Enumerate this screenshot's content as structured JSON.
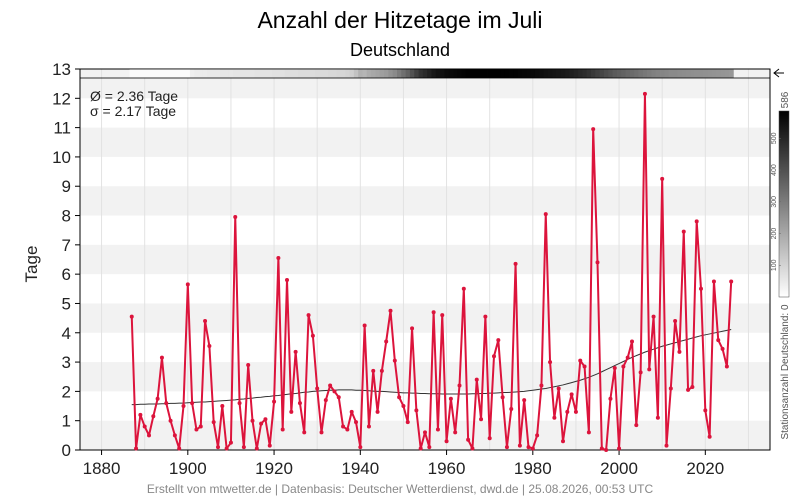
{
  "header": {
    "title": "Anzahl der Hitzetage im Juli",
    "subtitle": "Deutschland"
  },
  "stats": {
    "mean": "Ø = 2.36 Tage",
    "sigma": "σ = 2.17 Tage"
  },
  "credit": "Erstellt von mtwetter.de | Datenbasis: Deutscher Wetterdienst, dwd.de | 25.08.2026, 00:53 UTC",
  "colorbar": {
    "label": "Stationsanzahl Deutschland: 0",
    "max_label": "586",
    "ticks": [
      "100",
      "200",
      "300",
      "400",
      "500"
    ],
    "range": [
      0,
      586
    ]
  },
  "colors": {
    "series": "#dc143c",
    "trend": "#333333",
    "band": "#f2f2f2"
  },
  "chart_data": {
    "type": "line",
    "title": "Anzahl der Hitzetage im Juli",
    "subtitle": "Deutschland",
    "xlabel": "",
    "ylabel": "Tage",
    "xlim": [
      1875,
      2035
    ],
    "ylim": [
      0,
      13
    ],
    "xticks": [
      1880,
      1900,
      1920,
      1940,
      1960,
      1980,
      2000,
      2020
    ],
    "yticks": [
      0,
      1,
      2,
      3,
      4,
      5,
      6,
      7,
      8,
      9,
      10,
      11,
      12,
      13
    ],
    "grid": true,
    "x": [
      1887,
      1888,
      1889,
      1890,
      1891,
      1892,
      1893,
      1894,
      1895,
      1896,
      1897,
      1898,
      1899,
      1900,
      1901,
      1902,
      1903,
      1904,
      1905,
      1906,
      1907,
      1908,
      1909,
      1910,
      1911,
      1912,
      1913,
      1914,
      1915,
      1916,
      1917,
      1918,
      1919,
      1920,
      1921,
      1922,
      1923,
      1924,
      1925,
      1926,
      1927,
      1928,
      1929,
      1930,
      1931,
      1932,
      1933,
      1934,
      1935,
      1936,
      1937,
      1938,
      1939,
      1940,
      1941,
      1942,
      1943,
      1944,
      1945,
      1946,
      1947,
      1948,
      1949,
      1950,
      1951,
      1952,
      1953,
      1954,
      1955,
      1956,
      1957,
      1958,
      1959,
      1960,
      1961,
      1962,
      1963,
      1964,
      1965,
      1966,
      1967,
      1968,
      1969,
      1970,
      1971,
      1972,
      1973,
      1974,
      1975,
      1976,
      1977,
      1978,
      1979,
      1980,
      1981,
      1982,
      1983,
      1984,
      1985,
      1986,
      1987,
      1988,
      1989,
      1990,
      1991,
      1992,
      1993,
      1994,
      1995,
      1996,
      1997,
      1998,
      1999,
      2000,
      2001,
      2002,
      2003,
      2004,
      2005,
      2006,
      2007,
      2008,
      2009,
      2010,
      2011,
      2012,
      2013,
      2014,
      2015,
      2016,
      2017,
      2018,
      2019,
      2020,
      2021,
      2022,
      2023,
      2024,
      2025,
      2026
    ],
    "series": [
      {
        "values": [
          4.55,
          0.05,
          1.2,
          0.8,
          0.5,
          1.15,
          1.75,
          3.15,
          1.6,
          1.0,
          0.5,
          0.05,
          1.5,
          5.65,
          1.6,
          0.7,
          0.8,
          4.4,
          3.55,
          0.95,
          0.1,
          1.5,
          0.05,
          0.25,
          7.95,
          1.6,
          0.1,
          2.9,
          1.0,
          0.05,
          0.9,
          1.05,
          0.15,
          1.65,
          6.55,
          0.7,
          5.8,
          1.3,
          3.35,
          1.6,
          0.6,
          4.6,
          3.9,
          2.1,
          0.6,
          1.7,
          2.2,
          2.0,
          1.8,
          0.8,
          0.7,
          1.3,
          0.95,
          0.1,
          4.25,
          0.8,
          2.7,
          1.3,
          2.7,
          3.7,
          4.75,
          3.05,
          1.8,
          1.5,
          0.95,
          4.15,
          1.35,
          0.05,
          0.6,
          0.1,
          4.7,
          0.7,
          4.6,
          0.3,
          1.75,
          0.6,
          2.2,
          5.5,
          0.35,
          0.05,
          2.4,
          1.05,
          4.55,
          0.4,
          3.2,
          3.75,
          1.8,
          0.1,
          1.4,
          6.35,
          0.15,
          1.7,
          0.1,
          0.05,
          0.5,
          2.2,
          8.05,
          3.0,
          1.1,
          2.1,
          0.3,
          1.3,
          1.9,
          1.3,
          3.05,
          2.85,
          0.6,
          10.95,
          6.4,
          0.05,
          0.0,
          1.75,
          2.8,
          0.05,
          2.85,
          3.15,
          3.7,
          0.85,
          2.65,
          12.15,
          2.75,
          4.55,
          1.1,
          9.25,
          0.15,
          2.1,
          4.4,
          3.35,
          7.45,
          2.05,
          2.15,
          7.8,
          5.5,
          1.35,
          0.45,
          5.75,
          3.75,
          3.45,
          2.85,
          5.75
        ]
      },
      {
        "kind": "trend",
        "values": [
          1.55,
          1.55,
          1.56,
          1.56,
          1.57,
          1.57,
          1.57,
          1.58,
          1.58,
          1.59,
          1.59,
          1.6,
          1.6,
          1.61,
          1.62,
          1.63,
          1.64,
          1.64,
          1.65,
          1.66,
          1.67,
          1.68,
          1.69,
          1.7,
          1.71,
          1.73,
          1.74,
          1.76,
          1.77,
          1.79,
          1.8,
          1.82,
          1.83,
          1.85,
          1.86,
          1.88,
          1.9,
          1.92,
          1.93,
          1.95,
          1.97,
          1.98,
          2.0,
          2.01,
          2.02,
          2.03,
          2.04,
          2.04,
          2.05,
          2.05,
          2.05,
          2.05,
          2.04,
          2.04,
          2.03,
          2.02,
          2.01,
          2.0,
          2.0,
          1.99,
          1.98,
          1.97,
          1.96,
          1.95,
          1.95,
          1.94,
          1.94,
          1.93,
          1.93,
          1.92,
          1.92,
          1.92,
          1.91,
          1.91,
          1.91,
          1.91,
          1.91,
          1.91,
          1.91,
          1.92,
          1.92,
          1.93,
          1.93,
          1.94,
          1.94,
          1.95,
          1.96,
          1.96,
          1.97,
          1.98,
          1.99,
          2.0,
          2.02,
          2.04,
          2.06,
          2.08,
          2.1,
          2.13,
          2.16,
          2.19,
          2.22,
          2.26,
          2.3,
          2.34,
          2.38,
          2.43,
          2.48,
          2.54,
          2.6,
          2.67,
          2.74,
          2.81,
          2.88,
          2.95,
          3.02,
          3.09,
          3.16,
          3.22,
          3.28,
          3.34,
          3.39,
          3.44,
          3.49,
          3.54,
          3.58,
          3.62,
          3.66,
          3.7,
          3.74,
          3.78,
          3.82,
          3.86,
          3.9,
          3.93,
          3.96,
          3.99,
          4.02,
          4.05,
          4.08,
          4.11
        ]
      }
    ],
    "station_counts": [
      10,
      10,
      10,
      10,
      10,
      10,
      10,
      10,
      10,
      10,
      10,
      10,
      10,
      10,
      40,
      45,
      45,
      45,
      50,
      50,
      50,
      55,
      55,
      55,
      60,
      60,
      60,
      60,
      60,
      65,
      65,
      65,
      65,
      70,
      70,
      70,
      75,
      75,
      75,
      80,
      80,
      80,
      80,
      85,
      85,
      85,
      90,
      90,
      95,
      95,
      100,
      110,
      140,
      180,
      170,
      190,
      200,
      210,
      220,
      230,
      250,
      270,
      300,
      330,
      360,
      400,
      440,
      470,
      490,
      510,
      530,
      545,
      550,
      560,
      566,
      570,
      575,
      580,
      584,
      586,
      586,
      585,
      586,
      586,
      586,
      585,
      584,
      583,
      580,
      578,
      575,
      572,
      570,
      565,
      560,
      555,
      550,
      545,
      540,
      535,
      530,
      525,
      515,
      505,
      495,
      485,
      470,
      455,
      440,
      425,
      410,
      395,
      380,
      370,
      360,
      350,
      340,
      330,
      320,
      310,
      300,
      292,
      285,
      280,
      275,
      270,
      268,
      265,
      262,
      260,
      258,
      256,
      254,
      252,
      250,
      248,
      246,
      244,
      242,
      240
    ]
  }
}
